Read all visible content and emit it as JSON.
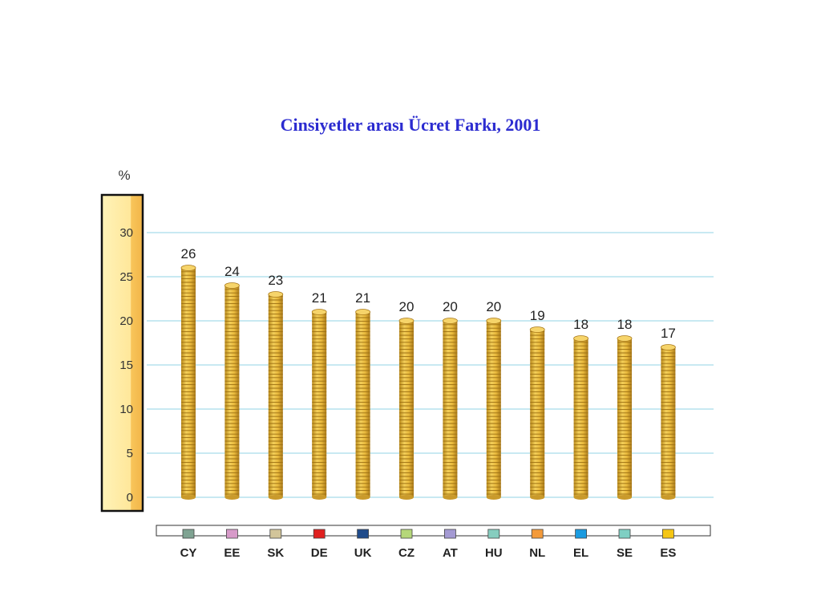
{
  "chart_data": {
    "type": "bar",
    "title": "Cinsiyetler arası Ücret Farkı, 2001",
    "ylabel": "%",
    "xlabel": "",
    "ylim": [
      0,
      30
    ],
    "yticks": [
      0,
      5,
      10,
      15,
      20,
      25,
      30
    ],
    "grid": true,
    "categories": [
      "CY",
      "EE",
      "SK",
      "DE",
      "UK",
      "CZ",
      "AT",
      "HU",
      "NL",
      "EL",
      "SE",
      "ES"
    ],
    "values": [
      26,
      24,
      23,
      21,
      21,
      20,
      20,
      20,
      19,
      18,
      18,
      17
    ],
    "category_colors": [
      "#7fa392",
      "#d79ac9",
      "#d2c59a",
      "#e0201f",
      "#1f4b8a",
      "#b5d77a",
      "#a49ad3",
      "#86cdbf",
      "#f39a3a",
      "#1a9be0",
      "#7fcfc3",
      "#f5c614"
    ],
    "bar_color": "#e8b83a",
    "grid_color": "#a8dcea"
  }
}
